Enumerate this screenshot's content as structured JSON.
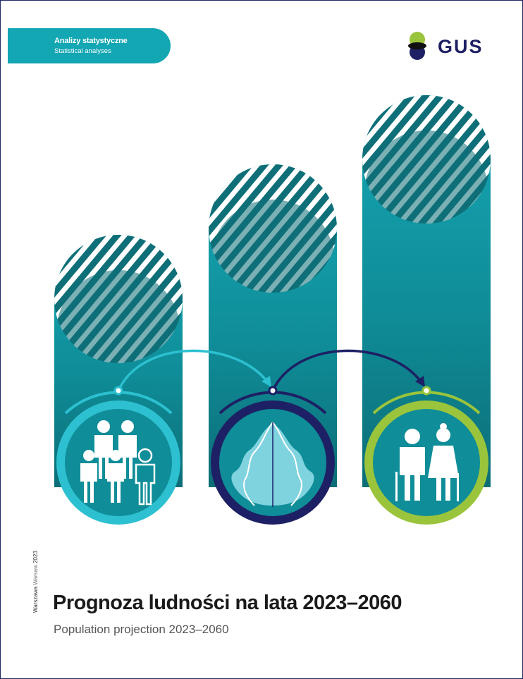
{
  "series": {
    "label_pl": "Analizy statystyczne",
    "label_en": "Statistical analyses"
  },
  "logo": {
    "text": "GUS",
    "colors": [
      "#9ac43c",
      "#1d2064"
    ]
  },
  "place": {
    "pl": "Warszawa",
    "en": "Warsaw",
    "year": "2023"
  },
  "title_pl": "Prognoza ludności na lata 2023–2060",
  "title_en": "Population projection 2023–2060",
  "palette": {
    "teal": "#129aa6",
    "teal_dark": "#0f6f78",
    "cyan": "#2cc0d0",
    "navy": "#1d2064",
    "lime": "#9ac43c"
  },
  "illustrations": {
    "left": "family-icon",
    "middle": "population-pyramid-icon",
    "right": "elderly-couple-icon"
  }
}
